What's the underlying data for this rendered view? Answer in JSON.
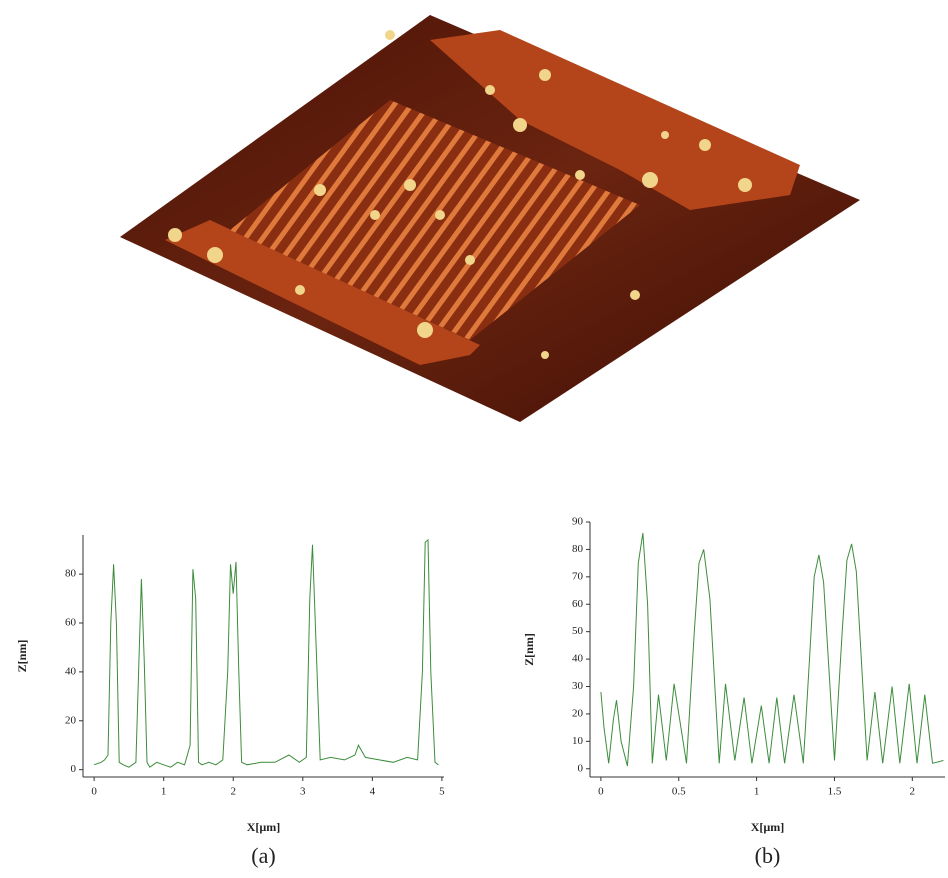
{
  "chart_data": [
    {
      "type": "line",
      "caption": "(a)",
      "x_label": "X[µm]",
      "y_label": "Z[nm]",
      "color": "#3c8c3c",
      "x": [
        0,
        0.1,
        0.15,
        0.2,
        0.24,
        0.28,
        0.32,
        0.36,
        0.42,
        0.5,
        0.6,
        0.64,
        0.68,
        0.72,
        0.76,
        0.8,
        0.9,
        1.0,
        1.1,
        1.2,
        1.3,
        1.38,
        1.42,
        1.46,
        1.5,
        1.55,
        1.65,
        1.75,
        1.85,
        1.92,
        1.96,
        2.0,
        2.04,
        2.08,
        2.12,
        2.2,
        2.4,
        2.6,
        2.8,
        2.95,
        3.05,
        3.1,
        3.14,
        3.18,
        3.25,
        3.4,
        3.6,
        3.75,
        3.8,
        3.9,
        4.1,
        4.3,
        4.5,
        4.65,
        4.72,
        4.76,
        4.8,
        4.84,
        4.9,
        4.95
      ],
      "values": [
        2,
        3,
        4,
        6,
        60,
        84,
        60,
        3,
        2,
        1,
        3,
        40,
        78,
        45,
        3,
        1,
        3,
        2,
        1,
        3,
        2,
        10,
        82,
        70,
        3,
        2,
        3,
        2,
        4,
        40,
        84,
        72,
        85,
        40,
        3,
        2,
        3,
        3,
        6,
        3,
        5,
        70,
        92,
        60,
        4,
        5,
        4,
        6,
        10,
        5,
        4,
        3,
        5,
        4,
        40,
        93,
        94,
        40,
        3,
        2
      ],
      "xlim": [
        -0.16,
        5.03
      ],
      "ylim": [
        -3,
        96
      ],
      "xticks": [
        0,
        1,
        2,
        3,
        4,
        5
      ],
      "yticks": [
        0,
        20,
        40,
        60,
        80
      ]
    },
    {
      "type": "line",
      "caption": "(b)",
      "x_label": "X[µm]",
      "y_label": "Z[nm]",
      "color": "#3c8c3c",
      "x": [
        0,
        0.02,
        0.05,
        0.08,
        0.1,
        0.13,
        0.17,
        0.21,
        0.24,
        0.27,
        0.3,
        0.33,
        0.37,
        0.42,
        0.47,
        0.55,
        0.6,
        0.63,
        0.66,
        0.7,
        0.76,
        0.8,
        0.86,
        0.92,
        0.97,
        1.03,
        1.08,
        1.13,
        1.18,
        1.24,
        1.3,
        1.34,
        1.37,
        1.4,
        1.43,
        1.5,
        1.55,
        1.58,
        1.61,
        1.64,
        1.71,
        1.76,
        1.81,
        1.87,
        1.92,
        1.98,
        2.03,
        2.08,
        2.13,
        2.2
      ],
      "values": [
        28,
        15,
        2,
        18,
        25,
        10,
        1,
        30,
        75,
        86,
        60,
        2,
        27,
        3,
        31,
        2,
        50,
        75,
        80,
        62,
        2,
        31,
        3,
        26,
        2,
        23,
        2,
        26,
        2,
        27,
        2,
        40,
        70,
        78,
        68,
        3,
        50,
        76,
        82,
        72,
        3,
        28,
        2,
        30,
        2,
        31,
        2,
        27,
        2,
        3
      ],
      "xlim": [
        -0.07,
        2.21
      ],
      "ylim": [
        -3,
        90
      ],
      "xticks": [
        0,
        0.5,
        1,
        1.5,
        2
      ],
      "yticks": [
        0,
        10,
        20,
        30,
        40,
        50,
        60,
        70,
        80,
        90
      ]
    }
  ]
}
